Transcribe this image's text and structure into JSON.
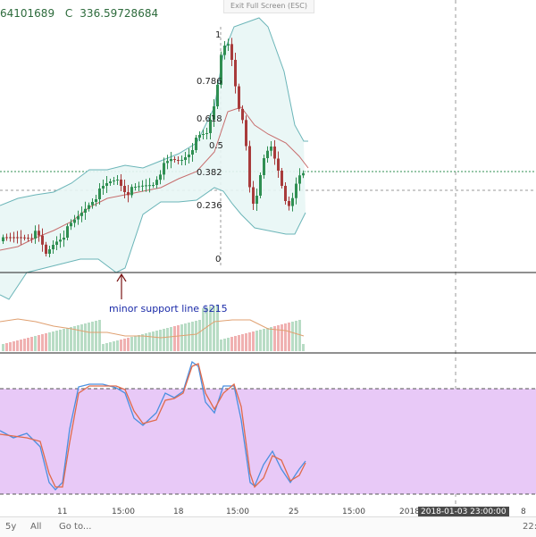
{
  "header": {
    "h_value": "64101689",
    "c_label": "C",
    "c_value": "336.59728684"
  },
  "banner": {
    "exit_fullscreen": "Exit Full Screen (ESC)"
  },
  "fib_levels": [
    "1",
    "0.786",
    "0.618",
    "0.5",
    "0.382",
    "0.236",
    "0"
  ],
  "annotation": {
    "support_text": "minor support  line $215"
  },
  "x_axis": {
    "ticks": [
      "11",
      "15:00",
      "18",
      "15:00",
      "25",
      "15:00",
      "2018",
      "8",
      "22:"
    ]
  },
  "crosshair_date": "2018-01-03 23:00:00",
  "bottom_bar": {
    "range": "5y",
    "all": "All",
    "goto": "Go to..."
  },
  "colors": {
    "stoch_bg": "#e8c9f7",
    "up_candle": "#2f8f52",
    "down_candle": "#a83b3b",
    "bollinger": "#6bb5b8",
    "bollinger_fill": "#e8f6f5",
    "ma": "#c76d6d",
    "stoch_k": "#4a8fe0",
    "stoch_d": "#e06a4a",
    "vol_up": "#b8dcc5",
    "vol_down": "#f0b1b1",
    "price_line": "#2f8f52"
  }
}
